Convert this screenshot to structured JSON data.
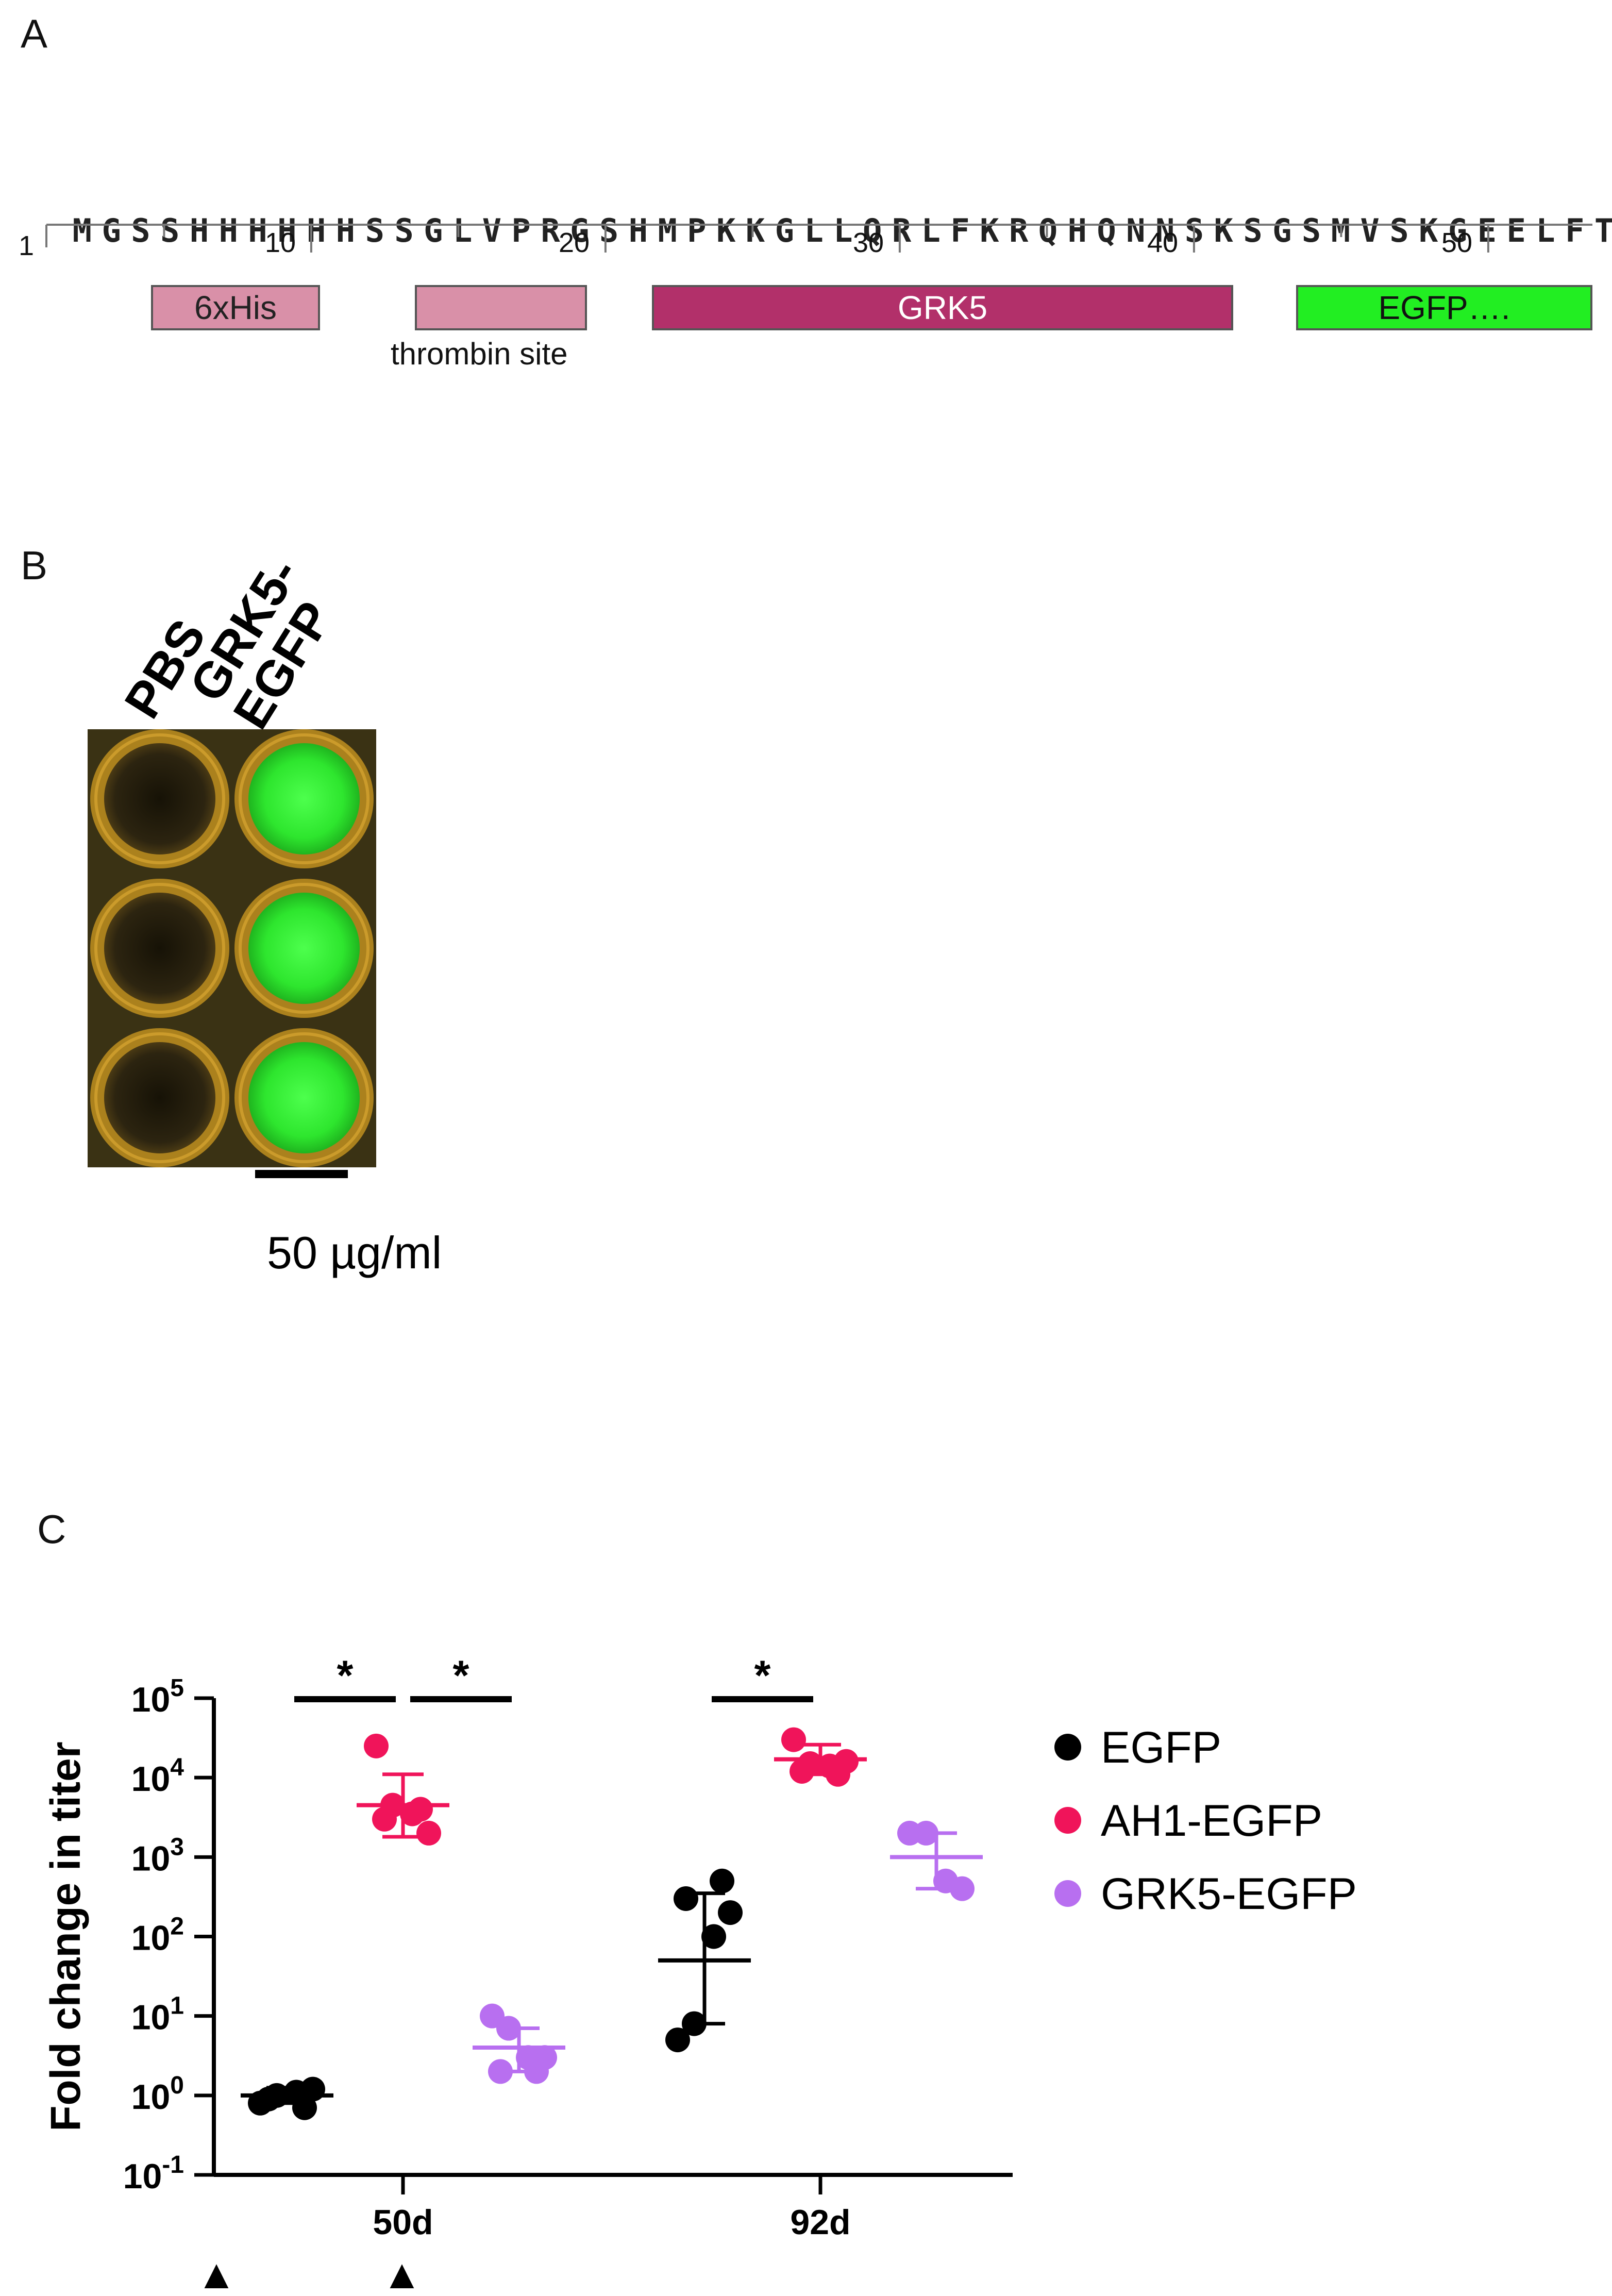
{
  "panel_a": {
    "label": "A",
    "sequence": "MGSSHHHHHHSSGLVPRGSHMPKKGLLQRLFKRQHQNNSKSGSMVSKGEELFT",
    "ruler": {
      "start_label": "1",
      "tick_labels": [
        "10",
        "20",
        "30",
        "40",
        "50"
      ]
    },
    "domains": [
      {
        "label": "6xHis",
        "color": "#d990a8",
        "text_color": "#222222"
      },
      {
        "label": "",
        "caption": "thrombin site",
        "color": "#d990a8"
      },
      {
        "label": "GRK5",
        "color": "#b2306a",
        "text_color": "#ffffff"
      },
      {
        "label": "EGFP….",
        "color": "#22ee22",
        "text_color": "#111111"
      }
    ]
  },
  "panel_b": {
    "label": "B",
    "column_labels": [
      "PBS",
      "GRK5-\nEGFP"
    ],
    "scale_bar_label": "50 µg/ml",
    "well_colors": {
      "empty": "#2a2410",
      "fluorescent": "#33e633",
      "rim": "#b88a1e"
    }
  },
  "panel_c": {
    "label": "C",
    "chart_data": {
      "type": "scatter",
      "title": "",
      "xlabel": "",
      "ylabel": "Fold change in titer",
      "yscale": "log10",
      "ylim": [
        0.1,
        100000
      ],
      "y_tick_labels": [
        {
          "base": "10",
          "exp": "-1"
        },
        {
          "base": "10",
          "exp": "0"
        },
        {
          "base": "10",
          "exp": "1"
        },
        {
          "base": "10",
          "exp": "2"
        },
        {
          "base": "10",
          "exp": "3"
        },
        {
          "base": "10",
          "exp": "4"
        },
        {
          "base": "10",
          "exp": "5"
        }
      ],
      "categories": [
        "50d",
        "92d"
      ],
      "legend_position": "right",
      "series": [
        {
          "name": "EGFP",
          "color": "#000000",
          "groups": [
            {
              "category": "50d",
              "values": [
                0.8,
                1.0,
                1.1,
                1.2,
                0.9,
                0.7
              ],
              "mean": 1.0,
              "sd": [
                0.8,
                1.25
              ]
            },
            {
              "category": "92d",
              "values": [
                5,
                8,
                100,
                200,
                300,
                500
              ],
              "mean": 50,
              "sd": [
                8,
                350
              ]
            }
          ]
        },
        {
          "name": "AH1-EGFP",
          "color": "#f0145a",
          "groups": [
            {
              "category": "50d",
              "values": [
                25000,
                4500,
                3500,
                2000,
                3000,
                4000
              ],
              "mean": 4500,
              "sd": [
                1800,
                11000
              ]
            },
            {
              "category": "92d",
              "values": [
                30000,
                15000,
                14000,
                16000,
                12000,
                11000
              ],
              "mean": 17000,
              "sd": [
                11000,
                26000
              ]
            }
          ]
        },
        {
          "name": "GRK5-EGFP",
          "color": "#b86ff0",
          "groups": [
            {
              "category": "50d",
              "values": [
                10,
                7,
                3,
                3,
                2,
                2
              ],
              "mean": 4,
              "sd": [
                2,
                7
              ]
            },
            {
              "category": "92d",
              "values": [
                2000,
                2000,
                500,
                400
              ],
              "mean": 1000,
              "sd": [
                400,
                2000
              ]
            }
          ]
        }
      ],
      "significance": [
        {
          "label": "*",
          "category": "50d",
          "between": [
            "EGFP",
            "AH1-EGFP"
          ]
        },
        {
          "label": "*",
          "category": "50d",
          "between": [
            "AH1-EGFP",
            "GRK5-EGFP"
          ]
        },
        {
          "label": "*",
          "category": "92d",
          "between": [
            "EGFP",
            "AH1-EGFP"
          ]
        }
      ],
      "markers": [
        "▲",
        "▲"
      ]
    }
  }
}
